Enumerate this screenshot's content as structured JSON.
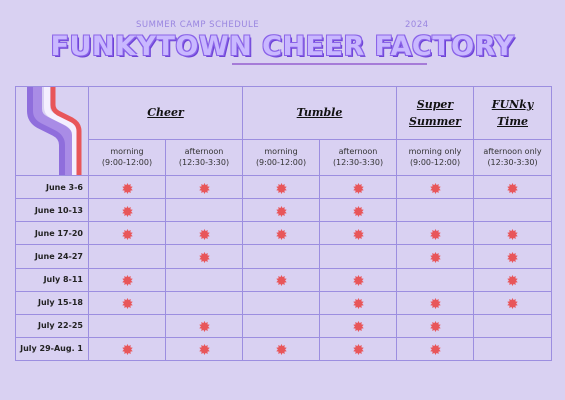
{
  "header": {
    "subtitle": "SUMMER CAMP SCHEDULE",
    "year": "2024",
    "title": "FUNKYTOWN CHEER FACTORY"
  },
  "programs": [
    {
      "name": "Cheer",
      "span": 2
    },
    {
      "name": "Tumble",
      "span": 2
    },
    {
      "name": "Super Summer",
      "span": 1
    },
    {
      "name": "FUNky Time",
      "span": 1
    }
  ],
  "sessions": [
    {
      "label": "morning",
      "time": "(9:00-12:00)"
    },
    {
      "label": "afternoon",
      "time": "(12:30-3:30)"
    },
    {
      "label": "morning",
      "time": "(9:00-12:00)"
    },
    {
      "label": "afternoon",
      "time": "(12:30-3:30)"
    },
    {
      "label": "morning only",
      "time": "(9:00-12:00)"
    },
    {
      "label": "afternoon only",
      "time": "(12:30-3:30)"
    }
  ],
  "weeks": [
    {
      "date": "June 3-6",
      "marks": [
        1,
        1,
        1,
        1,
        1,
        1
      ]
    },
    {
      "date": "June 10-13",
      "marks": [
        1,
        0,
        1,
        1,
        0,
        0
      ]
    },
    {
      "date": "June 17-20",
      "marks": [
        1,
        1,
        1,
        1,
        1,
        1
      ]
    },
    {
      "date": "June 24-27",
      "marks": [
        0,
        1,
        0,
        0,
        1,
        1
      ]
    },
    {
      "date": "July 8-11",
      "marks": [
        1,
        0,
        1,
        1,
        0,
        1
      ]
    },
    {
      "date": "July 15-18",
      "marks": [
        1,
        0,
        0,
        1,
        1,
        1
      ]
    },
    {
      "date": "July 22-25",
      "marks": [
        0,
        1,
        0,
        1,
        1,
        0
      ]
    },
    {
      "date": "July 29-Aug. 1",
      "marks": [
        1,
        1,
        1,
        1,
        1,
        0
      ]
    }
  ],
  "colors": {
    "background": "#d9d1f2",
    "grid": "#9c8ee0",
    "mark": "#e8565a",
    "title_fill": "#c9b8ff",
    "title_stroke": "#8a63e8"
  },
  "icons": {
    "mark": "starburst-icon",
    "logo": "retro-stripes-logo"
  }
}
